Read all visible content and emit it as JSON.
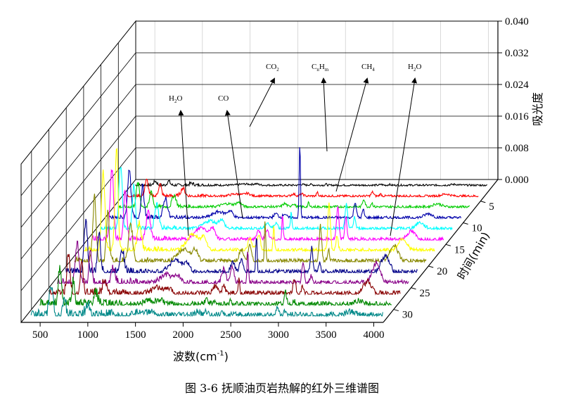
{
  "chart_data": {
    "type": "line",
    "subtype": "3d-waterfall",
    "caption": "图 3-6 抚顺油页岩热解的红外三维谱图",
    "x_axis": {
      "label": "波数(cm-1)",
      "label_main": "波数",
      "label_unit_pre": "(cm",
      "label_unit_sup": "-1",
      "label_unit_post": ")",
      "range": [
        300,
        4100
      ],
      "ticks": [
        500,
        1000,
        1500,
        2000,
        2500,
        3000,
        3500,
        4000
      ],
      "tick_labels": [
        "500",
        "1000",
        "1500",
        "2000",
        "2500",
        "3000",
        "3500",
        "4000"
      ]
    },
    "y_axis": {
      "label": "吸光度",
      "range": [
        0,
        0.04
      ],
      "ticks": [
        0.0,
        0.008,
        0.016,
        0.024,
        0.032,
        0.04
      ],
      "tick_labels": [
        "0.000",
        "0.008",
        "0.016",
        "0.024",
        "0.032",
        "0.040"
      ]
    },
    "z_axis": {
      "label": "时间(min)",
      "range": [
        0,
        33
      ],
      "ticks": [
        5,
        10,
        15,
        20,
        25,
        30
      ],
      "tick_labels": [
        "5",
        "10",
        "15",
        "20",
        "25",
        "30"
      ]
    },
    "grid": true,
    "annotations": [
      {
        "text_main": "H",
        "sub1": "2",
        "text_mid": "O",
        "sub2": "",
        "tail": "",
        "x": 3650
      },
      {
        "text_main": "CO",
        "sub1": "",
        "text_mid": "",
        "sub2": "",
        "tail": "",
        "x": 2170
      },
      {
        "text_main": "CO",
        "sub1": "2",
        "text_mid": "",
        "sub2": "",
        "tail": "",
        "x": 2350
      },
      {
        "text_main": "C",
        "sub1": "n",
        "text_mid": "H",
        "sub2": "m",
        "tail": "",
        "x": 2930
      },
      {
        "text_main": "CH",
        "sub1": "4",
        "text_mid": "",
        "sub2": "",
        "tail": "",
        "x": 3015
      },
      {
        "text_main": "H",
        "sub1": "2",
        "text_mid": "O",
        "sub2": "",
        "tail": "",
        "x": 1600
      }
    ],
    "series_colors": [
      "#000000",
      "#ff0000",
      "#00cc00",
      "#0000aa",
      "#00ffff",
      "#ff00ff",
      "#ffff00",
      "#888800",
      "#000088",
      "#880088",
      "#880000",
      "#008800",
      "#008888"
    ],
    "series_times": [
      1.5,
      4,
      6.5,
      9,
      11.5,
      14,
      16.5,
      19,
      21.5,
      24,
      26.5,
      29,
      31.5
    ],
    "peaks": [
      {
        "x": 560,
        "w": 25,
        "amp": [
          0.001,
          0.004,
          0.006,
          0.012,
          0.016,
          0.018,
          0.02,
          0.016,
          0.013,
          0.01,
          0.01,
          0.009,
          0.008
        ]
      },
      {
        "x": 700,
        "w": 22,
        "amp": [
          0.001,
          0.003,
          0.004,
          0.008,
          0.011,
          0.013,
          0.026,
          0.012,
          0.01,
          0.008,
          0.007,
          0.006,
          0.005
        ]
      },
      {
        "x": 940,
        "w": 30,
        "amp": [
          0.0005,
          0.002,
          0.003,
          0.005,
          0.006,
          0.007,
          0.007,
          0.009,
          0.006,
          0.004,
          0.004,
          0.003,
          0.003
        ]
      },
      {
        "x": 1500,
        "w": 90,
        "amp": [
          0.0003,
          0.0005,
          0.0008,
          0.0015,
          0.002,
          0.003,
          0.004,
          0.003,
          0.003,
          0.002,
          0.0015,
          0.001,
          0.001
        ]
      },
      {
        "x": 1620,
        "w": 40,
        "amp": [
          0.0003,
          0.0006,
          0.001,
          0.0015,
          0.002,
          0.0025,
          0.003,
          0.0025,
          0.002,
          0.0015,
          0.001,
          0.001,
          0.0008
        ]
      },
      {
        "x": 2100,
        "w": 30,
        "amp": [
          0.0002,
          0.0005,
          0.0008,
          0.001,
          0.0015,
          0.002,
          0.003,
          0.003,
          0.0025,
          0.0035,
          0.002,
          0.001,
          0.001
        ]
      },
      {
        "x": 2190,
        "w": 25,
        "amp": [
          0.0002,
          0.0005,
          0.0008,
          0.001,
          0.0015,
          0.002,
          0.004,
          0.004,
          0.003,
          0.004,
          0.002,
          0.001,
          0.001
        ]
      },
      {
        "x": 2350,
        "w": 10,
        "amp": [
          0.0003,
          0.001,
          0.001,
          0.0183,
          0.004,
          0.006,
          0.006,
          0.01,
          0.009,
          0.008,
          0.004,
          0.001,
          0.001
        ]
      },
      {
        "x": 2930,
        "w": 18,
        "amp": [
          0.0002,
          0.001,
          0.002,
          0.004,
          0.006,
          0.008,
          0.012,
          0.009,
          0.006,
          0.005,
          0.004,
          0.003,
          0.002
        ]
      },
      {
        "x": 3015,
        "w": 15,
        "amp": [
          0.0002,
          0.0005,
          0.001,
          0.002,
          0.003,
          0.006,
          0.004,
          0.003,
          0.002,
          0.002,
          0.002,
          0.001,
          0.001
        ]
      },
      {
        "x": 3700,
        "w": 60,
        "amp": [
          0.0002,
          0.0005,
          0.0008,
          0.001,
          0.0015,
          0.002,
          0.003,
          0.004,
          0.004,
          0.005,
          0.003,
          0.001,
          0.001
        ]
      }
    ]
  }
}
